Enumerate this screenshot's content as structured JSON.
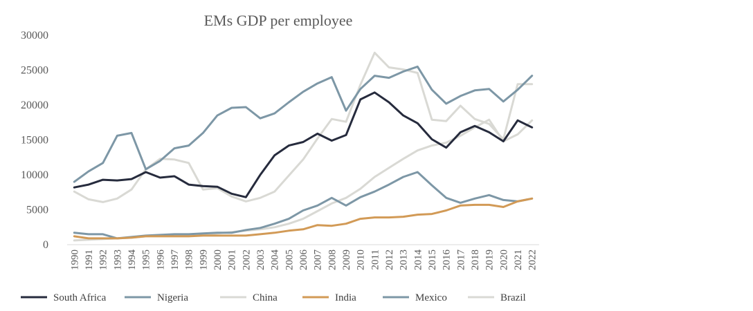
{
  "chart_data": {
    "type": "line",
    "title": "EMs GDP per employee",
    "xlabel": "",
    "ylabel": "",
    "ylim": [
      0,
      30000
    ],
    "yticks": [
      0,
      5000,
      10000,
      15000,
      20000,
      25000,
      30000
    ],
    "grid": false,
    "legend_position": "bottom",
    "categories": [
      "1990",
      "1991",
      "1992",
      "1993",
      "1994",
      "1995",
      "1996",
      "1997",
      "1998",
      "1999",
      "2000",
      "2001",
      "2002",
      "2003",
      "2004",
      "2005",
      "2006",
      "2007",
      "2008",
      "2009",
      "2010",
      "2011",
      "2012",
      "2013",
      "2014",
      "2015",
      "2016",
      "2017",
      "2018",
      "2019",
      "2020",
      "2021",
      "2022"
    ],
    "series": [
      {
        "name": "South Africa",
        "color": "#262b3d",
        "width": 3,
        "values": [
          8200,
          8600,
          9300,
          9200,
          9400,
          10400,
          9600,
          9800,
          8600,
          8400,
          8300,
          7300,
          6800,
          10000,
          12800,
          14200,
          14700,
          15900,
          14900,
          15700,
          20800,
          21800,
          20400,
          18500,
          17400,
          15100,
          13900,
          16100,
          17000,
          16100,
          14800,
          17800,
          16800
        ]
      },
      {
        "name": "Nigeria",
        "color": "#7d97a6",
        "width": 3,
        "values": [
          9000,
          10500,
          11700,
          15600,
          16000,
          10800,
          12000,
          13800,
          14200,
          16000,
          18500,
          19600,
          19700,
          18100,
          18800,
          20400,
          21900,
          23100,
          24000,
          19200,
          22300,
          24200,
          23900,
          24800,
          25500,
          22200,
          20200,
          21300,
          22100,
          22300,
          20500,
          22200,
          24200
        ]
      },
      {
        "name": "China",
        "color": "#d9d9d4",
        "width": 3,
        "values": [
          600,
          700,
          800,
          900,
          1000,
          1200,
          1300,
          1400,
          1400,
          1500,
          1600,
          1800,
          2000,
          2200,
          2500,
          3000,
          3700,
          4800,
          5900,
          6700,
          8000,
          9700,
          11000,
          12300,
          13500,
          14200,
          14600,
          15600,
          16800,
          17900,
          14800,
          15800,
          17800
        ]
      },
      {
        "name": "India",
        "color": "#d29a56",
        "width": 3,
        "values": [
          1200,
          900,
          900,
          900,
          1000,
          1200,
          1200,
          1200,
          1200,
          1300,
          1300,
          1300,
          1300,
          1500,
          1700,
          2000,
          2200,
          2800,
          2700,
          3000,
          3700,
          3900,
          3900,
          4000,
          4300,
          4400,
          4900,
          5600,
          5700,
          5700,
          5400,
          6200,
          6600
        ]
      },
      {
        "name": "Mexico",
        "color": "#7d97a6",
        "width": 3,
        "values": [
          1700,
          1500,
          1500,
          900,
          1100,
          1300,
          1400,
          1500,
          1500,
          1600,
          1700,
          1700,
          2100,
          2400,
          3000,
          3700,
          4900,
          5600,
          6700,
          5600,
          6800,
          7600,
          8600,
          9700,
          10400,
          8500,
          6700,
          6000,
          6600,
          7100,
          6400,
          6200,
          6600
        ]
      },
      {
        "name": "Brazil",
        "color": "#d9d9d4",
        "width": 3,
        "values": [
          7600,
          6500,
          6100,
          6600,
          7900,
          10800,
          12300,
          12200,
          11700,
          7900,
          8100,
          6900,
          6200,
          6700,
          7600,
          9900,
          12200,
          15200,
          18000,
          17600,
          22900,
          27500,
          25400,
          25100,
          24600,
          17900,
          17700,
          19900,
          18000,
          17300,
          15100,
          23000,
          23000
        ]
      }
    ]
  }
}
